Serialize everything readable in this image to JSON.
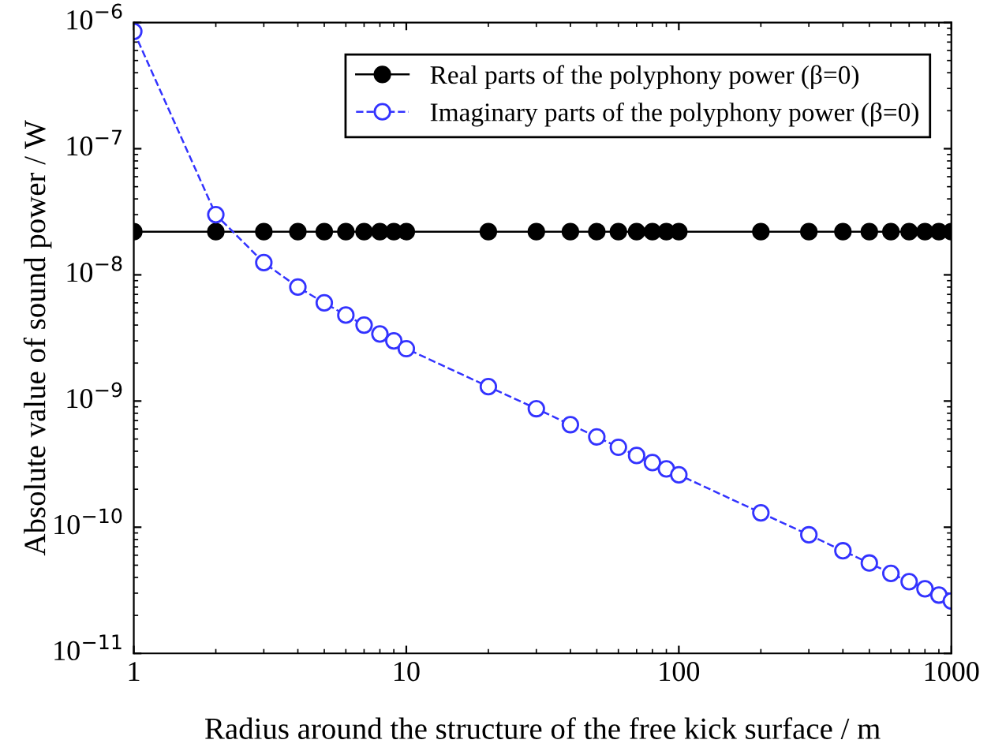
{
  "chart_data": {
    "type": "line",
    "xlabel": "Radius around the structure of the free kick surface / m",
    "ylabel": "Absolute value of sound power / W",
    "log": "xy",
    "grid": false,
    "legend": "top right",
    "x": [
      1,
      2,
      3,
      4,
      5,
      6,
      7,
      8,
      9,
      10,
      20,
      30,
      40,
      50,
      60,
      70,
      80,
      90,
      100,
      200,
      300,
      400,
      500,
      600,
      700,
      800,
      900,
      1000
    ],
    "series": [
      {
        "name": "Real parts of the polyphony power (β=0)",
        "color": "#000000",
        "marker": "circle",
        "line_style": "solid",
        "values": [
          2.2e-08,
          2.2e-08,
          2.2e-08,
          2.2e-08,
          2.2e-08,
          2.2e-08,
          2.2e-08,
          2.2e-08,
          2.2e-08,
          2.2e-08,
          2.2e-08,
          2.2e-08,
          2.2e-08,
          2.2e-08,
          2.2e-08,
          2.2e-08,
          2.2e-08,
          2.2e-08,
          2.2e-08,
          2.2e-08,
          2.2e-08,
          2.2e-08,
          2.2e-08,
          2.2e-08,
          2.2e-08,
          2.2e-08,
          2.2e-08,
          2.2e-08
        ]
      },
      {
        "name": "Imaginary parts of the polyphony power (β=0)",
        "color": "#3333ff",
        "marker": "circle",
        "line_style": "dashed",
        "values": [
          8.5e-07,
          3e-08,
          1.25e-08,
          8e-09,
          6e-09,
          4.8e-09,
          4e-09,
          3.4e-09,
          3e-09,
          2.6e-09,
          1.3e-09,
          8.7e-10,
          6.5e-10,
          5.2e-10,
          4.3e-10,
          3.7e-10,
          3.25e-10,
          2.9e-10,
          2.6e-10,
          1.3e-10,
          8.7e-11,
          6.5e-11,
          5.2e-11,
          4.3e-11,
          3.7e-11,
          3.25e-11,
          2.9e-11,
          2.6e-11
        ]
      }
    ],
    "xlim": [
      1,
      1000
    ],
    "xticks": [
      1,
      10,
      100,
      1000
    ],
    "ylim": [
      1e-11,
      1e-06
    ],
    "yticks": [
      {
        "value": 1e-11,
        "label": "10$^{−11}$"
      },
      {
        "value": 1e-10,
        "label": "10$^{−10}$"
      },
      {
        "value": 1e-09,
        "label": "10$^{−9}$"
      },
      {
        "value": 1e-08,
        "label": "10$^{−8}$"
      },
      {
        "value": 1e-07,
        "label": "10$^{−7}$"
      },
      {
        "value": 1e-06,
        "label": "10$^{−6}$"
      }
    ]
  }
}
